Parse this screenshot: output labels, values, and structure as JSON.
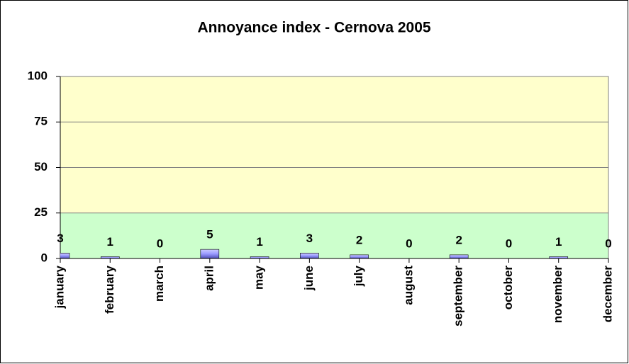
{
  "chart_data": {
    "type": "bar",
    "title": "Annoyance index - Cernova 2005",
    "categories": [
      "january",
      "february",
      "march",
      "april",
      "may",
      "june",
      "july",
      "august",
      "september",
      "october",
      "november",
      "december"
    ],
    "values": [
      3,
      1,
      0,
      5,
      1,
      3,
      2,
      0,
      2,
      0,
      1,
      0
    ],
    "color": "#9999ff",
    "ylim": [
      0,
      100
    ],
    "yticks": [
      0,
      25,
      50,
      75,
      100
    ],
    "grid": true,
    "bands": [
      {
        "from": 0,
        "to": 25,
        "color": "#ccffcc"
      },
      {
        "from": 25,
        "to": 100,
        "color": "#ffffcc"
      }
    ]
  }
}
